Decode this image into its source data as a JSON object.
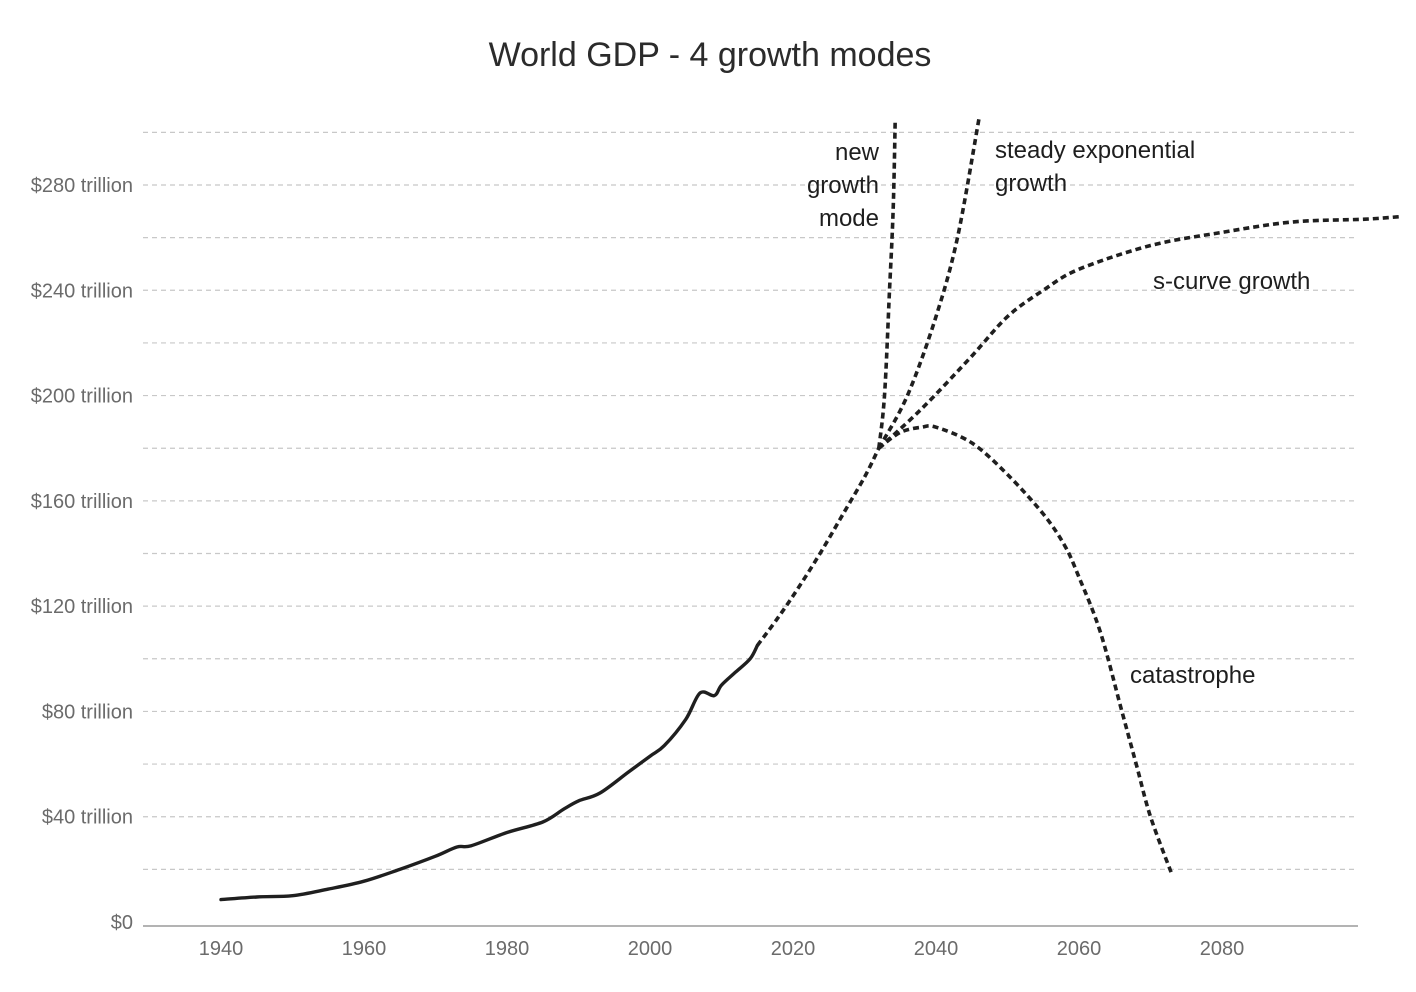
{
  "chart_data": {
    "type": "line",
    "title": "World GDP - 4 growth modes",
    "xlabel": "",
    "ylabel": "",
    "xlim": [
      1930,
      2105
    ],
    "ylim": [
      0,
      300
    ],
    "grid": true,
    "y_ticks": [
      {
        "value": 0,
        "label": "$0"
      },
      {
        "value": 40,
        "label": "$40 trillion"
      },
      {
        "value": 80,
        "label": "$80 trillion"
      },
      {
        "value": 120,
        "label": "$120 trillion"
      },
      {
        "value": 160,
        "label": "$160 trillion"
      },
      {
        "value": 200,
        "label": "$200 trillion"
      },
      {
        "value": 240,
        "label": "$240 trillion"
      },
      {
        "value": 280,
        "label": "$280 trillion"
      }
    ],
    "x_ticks": [
      {
        "value": 1940,
        "label": "1940"
      },
      {
        "value": 1960,
        "label": "1960"
      },
      {
        "value": 1980,
        "label": "1980"
      },
      {
        "value": 2000,
        "label": "2000"
      },
      {
        "value": 2020,
        "label": "2020"
      },
      {
        "value": 2040,
        "label": "2040"
      },
      {
        "value": 2060,
        "label": "2060"
      },
      {
        "value": 2080,
        "label": "2080"
      }
    ],
    "series": [
      {
        "key": "historical",
        "style": "solid",
        "points": [
          [
            1940,
            8.5
          ],
          [
            1945,
            9.5
          ],
          [
            1950,
            10
          ],
          [
            1955,
            12.5
          ],
          [
            1960,
            15.5
          ],
          [
            1965,
            20
          ],
          [
            1970,
            25
          ],
          [
            1973,
            28.5
          ],
          [
            1975,
            29
          ],
          [
            1980,
            34
          ],
          [
            1985,
            38
          ],
          [
            1988,
            43
          ],
          [
            1990,
            46
          ],
          [
            1993,
            49
          ],
          [
            1997,
            57
          ],
          [
            2000,
            63
          ],
          [
            2002,
            67
          ],
          [
            2005,
            77
          ],
          [
            2007,
            87
          ],
          [
            2009,
            86
          ],
          [
            2010,
            90
          ],
          [
            2012,
            95
          ],
          [
            2014,
            100
          ],
          [
            2015,
            105
          ]
        ]
      },
      {
        "key": "trend",
        "style": "dashed",
        "points": [
          [
            2015,
            105
          ],
          [
            2018,
            116
          ],
          [
            2021,
            128
          ],
          [
            2024,
            141
          ],
          [
            2027,
            155
          ],
          [
            2030,
            169
          ],
          [
            2032,
            180
          ]
        ]
      },
      {
        "key": "new-growth-mode",
        "style": "dashed",
        "label": [
          "new",
          "growth",
          "mode"
        ],
        "points": [
          [
            2032,
            180
          ],
          [
            2032.8,
            200
          ],
          [
            2033.5,
            240
          ],
          [
            2034,
            270
          ],
          [
            2034.3,
            305
          ]
        ]
      },
      {
        "key": "steady-exponential",
        "style": "dashed",
        "label": [
          "steady exponential",
          "growth"
        ],
        "points": [
          [
            2032,
            180
          ],
          [
            2036,
            200
          ],
          [
            2040,
            230
          ],
          [
            2043,
            260
          ],
          [
            2046,
            305
          ]
        ]
      },
      {
        "key": "s-curve",
        "style": "dashed",
        "label": [
          "s-curve growth"
        ],
        "points": [
          [
            2032,
            180
          ],
          [
            2038,
            195
          ],
          [
            2045,
            215
          ],
          [
            2050,
            230
          ],
          [
            2055,
            240
          ],
          [
            2060,
            248
          ],
          [
            2070,
            257
          ],
          [
            2080,
            262
          ],
          [
            2090,
            266
          ],
          [
            2100,
            267
          ],
          [
            2105,
            268
          ]
        ]
      },
      {
        "key": "catastrophe",
        "style": "dashed",
        "label": [
          "catastrophe"
        ],
        "points": [
          [
            2032,
            180
          ],
          [
            2035,
            186
          ],
          [
            2038,
            188
          ],
          [
            2040,
            188
          ],
          [
            2045,
            182
          ],
          [
            2050,
            170
          ],
          [
            2055,
            155
          ],
          [
            2058,
            143
          ],
          [
            2060,
            131
          ],
          [
            2063,
            110
          ],
          [
            2066,
            80
          ],
          [
            2068,
            60
          ],
          [
            2070,
            40
          ],
          [
            2073,
            18
          ]
        ]
      }
    ],
    "annotations": [
      {
        "for": "new-growth-mode",
        "lines": [
          "new",
          "growth",
          "mode"
        ]
      },
      {
        "for": "steady-exponential",
        "lines": [
          "steady exponential",
          "growth"
        ]
      },
      {
        "for": "s-curve",
        "lines": [
          "s-curve growth"
        ]
      },
      {
        "for": "catastrophe",
        "lines": [
          "catastrophe"
        ]
      }
    ]
  }
}
